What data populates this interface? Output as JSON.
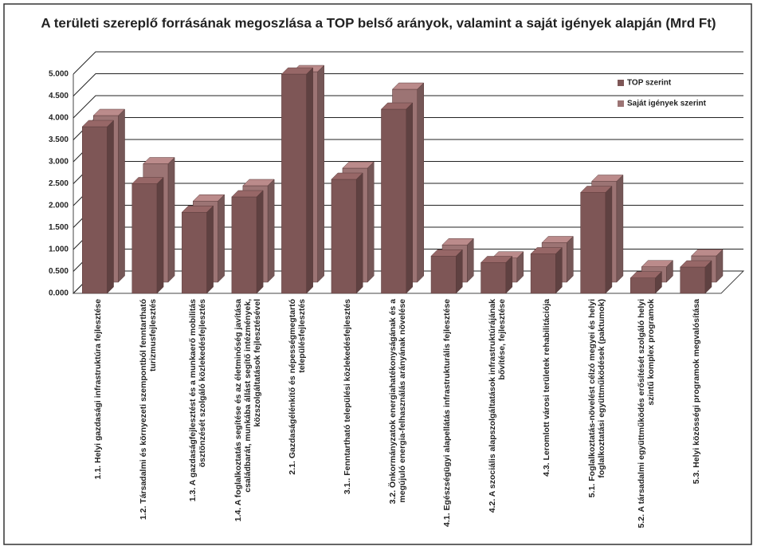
{
  "chart_data": {
    "type": "bar3d",
    "title": "A területi szereplő forrásának megoszlása a TOP belső arányok, valamint a saját igények alapján (Mrd Ft)",
    "categories": [
      "1.1. Helyi gazdasági infrastruktúra fejlesztése",
      "1.2. Társadalmi és környezeti szempontból fenntartható turizmusfejlesztés",
      "1.3. A gazdaságfejlesztést és a munkaerő mobilitás ösztönzését szolgáló közlekedésfejlesztés",
      "1.4. A foglalkoztatás segítése és az életminőség javítása családbarát, munkába állást segítő intézmények, közszolgáltatások fejlesztésével",
      "2.1. Gazdaságélénkítő és népességmegtartó településfejlesztés",
      "3.1.. Fenntartható települési közlekedésfejlesztés",
      "3.2. Önkormányzatok energiahatékonyságának és a megújuló energia-felhasználás arányának növelése",
      "4.1. Egészségügyi alapellátás infrastrukturális fejlesztése",
      "4.2. A szociális alapszolgáltatások infrastruktúrájának bővítése, fejlesztése",
      "4.3. Leromlott városi területek rehabilitációja",
      "5.1. Foglalkoztatás-növelést célzó megyei és helyi foglalkoztatási együttműködések (paktumok)",
      "5.2. A társadalmi együttműködés erősítését szolgáló helyi szintű komplex programok",
      "5.3. Helyi közösségi programok megvalósítása"
    ],
    "series": [
      {
        "name": "TOP szerint",
        "color": "#7e5656",
        "values": [
          3.8,
          2.5,
          1.85,
          2.2,
          5.0,
          2.6,
          4.2,
          0.85,
          0.7,
          0.9,
          2.3,
          0.35,
          0.6
        ]
      },
      {
        "name": "Saját igények szerint",
        "color": "#9c7474",
        "values": [
          3.8,
          2.7,
          1.85,
          2.2,
          4.8,
          2.6,
          4.4,
          0.85,
          0.55,
          0.9,
          2.3,
          0.35,
          0.6
        ]
      }
    ],
    "ylim": [
      0,
      5
    ],
    "yticks": [
      {
        "value": 0,
        "label": "0.000"
      },
      {
        "value": 0.5,
        "label": "0.500"
      },
      {
        "value": 1,
        "label": "1.000"
      },
      {
        "value": 1.5,
        "label": "1.500"
      },
      {
        "value": 2,
        "label": "2.000"
      },
      {
        "value": 2.5,
        "label": "2.500"
      },
      {
        "value": 3,
        "label": "3.000"
      },
      {
        "value": 3.5,
        "label": "3.500"
      },
      {
        "value": 4,
        "label": "4.000"
      },
      {
        "value": 4.5,
        "label": "4.500"
      },
      {
        "value": 5,
        "label": "5.000"
      }
    ],
    "grid": true,
    "legend": "upper right"
  }
}
